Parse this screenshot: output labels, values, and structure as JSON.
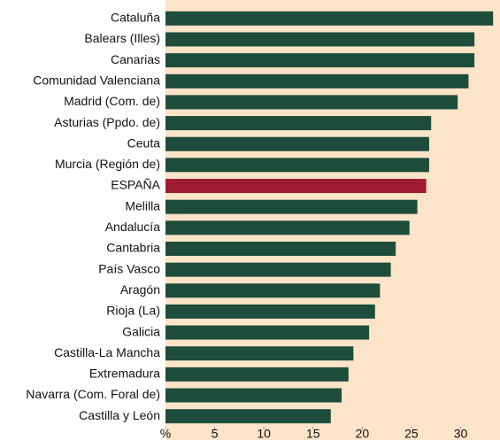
{
  "chart_data": {
    "type": "hbar",
    "categories": [
      "Cataluña",
      "Balears (Illes)",
      "Canarias",
      "Comunidad Valenciana",
      "Madrid (Com. de)",
      "Asturias (Ppdo. de)",
      "Ceuta",
      "Murcia (Región de)",
      "ESPAÑA",
      "Melilla",
      "Andalucía",
      "Cantabria",
      "País Vasco",
      "Aragón",
      "Rioja (La)",
      "Galicia",
      "Castilla-La Mancha",
      "Extremadura",
      "Navarra (Com. Foral de)",
      "Castilla y León"
    ],
    "values": [
      33.3,
      31.4,
      31.4,
      30.8,
      29.7,
      27.0,
      26.8,
      26.8,
      26.5,
      25.6,
      24.8,
      23.4,
      22.9,
      21.8,
      21.3,
      20.7,
      19.1,
      18.6,
      17.9,
      16.8
    ],
    "colors": [
      "#1f4d3b",
      "#1f4d3b",
      "#1f4d3b",
      "#1f4d3b",
      "#1f4d3b",
      "#1f4d3b",
      "#1f4d3b",
      "#1f4d3b",
      "#9e1b32",
      "#1f4d3b",
      "#1f4d3b",
      "#1f4d3b",
      "#1f4d3b",
      "#1f4d3b",
      "#1f4d3b",
      "#1f4d3b",
      "#1f4d3b",
      "#1f4d3b",
      "#1f4d3b",
      "#1f4d3b"
    ],
    "xlim": [
      0,
      34
    ],
    "xticks": [
      {
        "value": 0,
        "label": "%"
      },
      5,
      10,
      15,
      20,
      25,
      30
    ],
    "grid": false
  }
}
